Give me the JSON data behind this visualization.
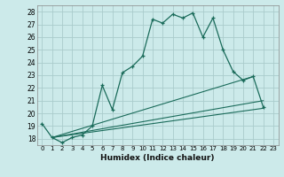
{
  "xlabel": "Humidex (Indice chaleur)",
  "ylabel": "",
  "background_color": "#cceaea",
  "grid_color": "#aacccc",
  "line_color": "#1a6b5a",
  "xlim": [
    -0.5,
    23.5
  ],
  "ylim": [
    17.5,
    28.5
  ],
  "yticks": [
    18,
    19,
    20,
    21,
    22,
    23,
    24,
    25,
    26,
    27,
    28
  ],
  "xticks": [
    0,
    1,
    2,
    3,
    4,
    5,
    6,
    7,
    8,
    9,
    10,
    11,
    12,
    13,
    14,
    15,
    16,
    17,
    18,
    19,
    20,
    21,
    22,
    23
  ],
  "line1_x": [
    0,
    1,
    2,
    3,
    4,
    5,
    6,
    7,
    8,
    9,
    10,
    11,
    12,
    13,
    14,
    15,
    16,
    17,
    18,
    19,
    20,
    21,
    22
  ],
  "line1_y": [
    19.2,
    18.1,
    17.7,
    18.1,
    18.3,
    19.0,
    22.2,
    20.3,
    23.2,
    23.7,
    24.5,
    27.4,
    27.1,
    27.8,
    27.5,
    27.9,
    26.0,
    27.5,
    25.0,
    23.3,
    22.6,
    22.9,
    20.5
  ],
  "line2_x": [
    1,
    22
  ],
  "line2_y": [
    18.1,
    20.4
  ],
  "line3_x": [
    1,
    22
  ],
  "line3_y": [
    18.1,
    21.0
  ],
  "line4_x": [
    1,
    21
  ],
  "line4_y": [
    18.1,
    22.9
  ]
}
